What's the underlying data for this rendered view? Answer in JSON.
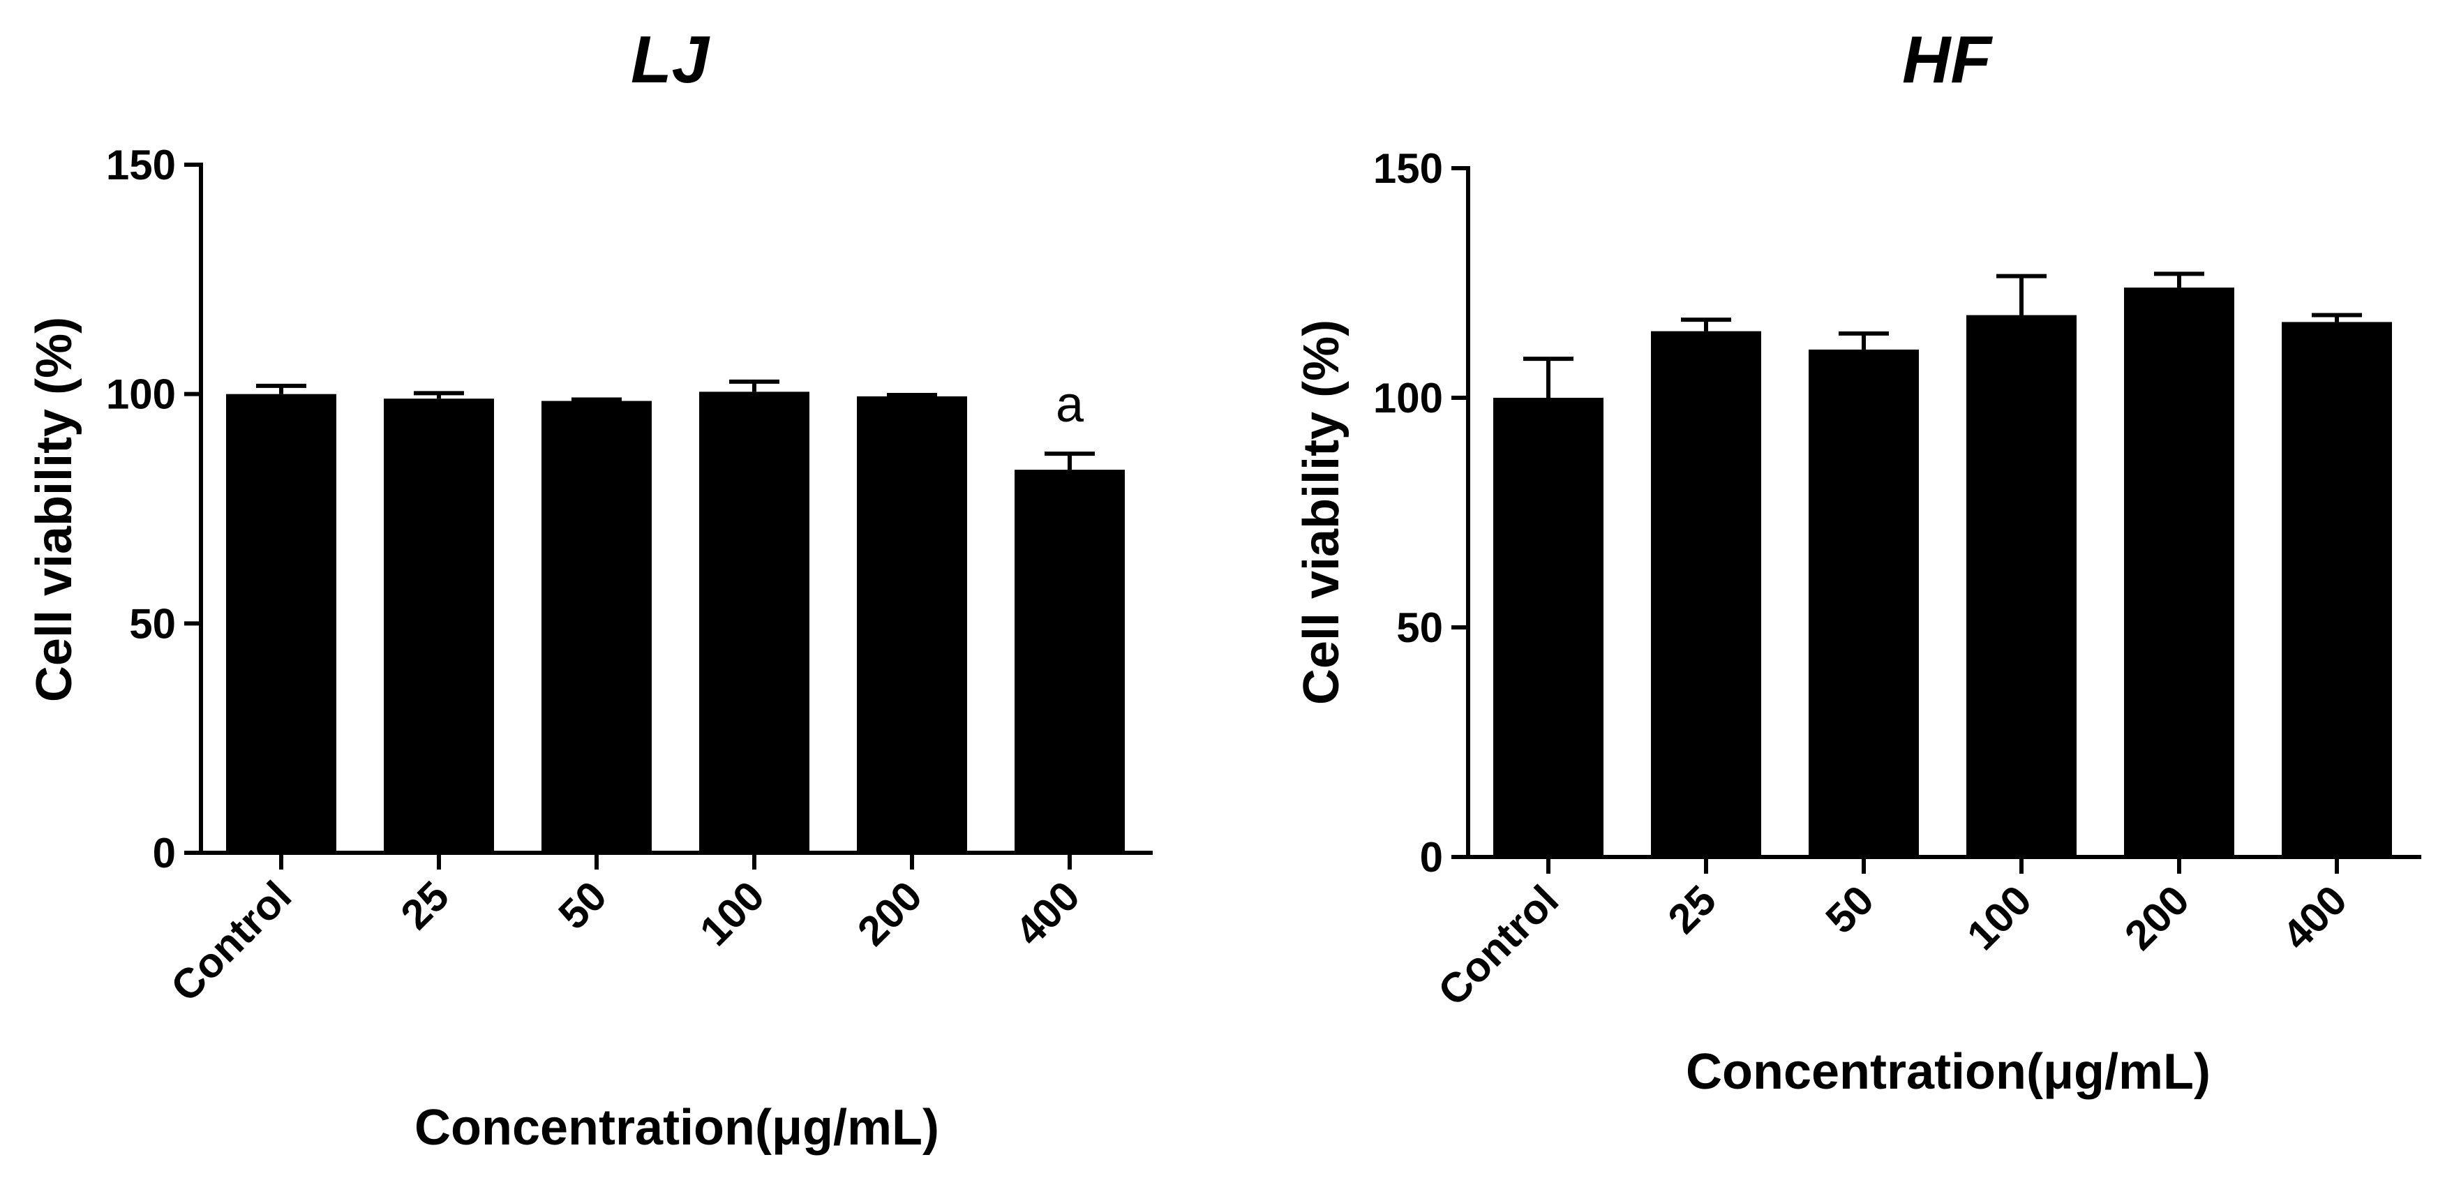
{
  "chart_data": [
    {
      "type": "bar",
      "title": "LJ",
      "xlabel": "Concentration(μg/mL)",
      "ylabel": "Cell viability (%)",
      "categories": [
        "Control",
        "25",
        "50",
        "100",
        "200",
        "400"
      ],
      "values": [
        100,
        99,
        98.5,
        100.5,
        99.5,
        83.5
      ],
      "errors": [
        1.8,
        1.2,
        0.3,
        2.2,
        0.3,
        3.5
      ],
      "ylim": [
        0,
        150
      ],
      "yticks": [
        "0",
        "50",
        "100",
        "150"
      ],
      "annotations": [
        {
          "category": "400",
          "text": "a"
        }
      ]
    },
    {
      "type": "bar",
      "title": "HF",
      "xlabel": "Concentration(μg/mL)",
      "ylabel": "Cell viability (%)",
      "categories": [
        "Control",
        "25",
        "50",
        "100",
        "200",
        "400"
      ],
      "values": [
        100,
        114.5,
        110.5,
        118,
        124,
        116.5
      ],
      "errors": [
        8.5,
        2.5,
        3.5,
        8.5,
        3,
        1.5
      ],
      "ylim": [
        0,
        150
      ],
      "yticks": [
        "0",
        "50",
        "100",
        "150"
      ],
      "annotations": []
    }
  ]
}
